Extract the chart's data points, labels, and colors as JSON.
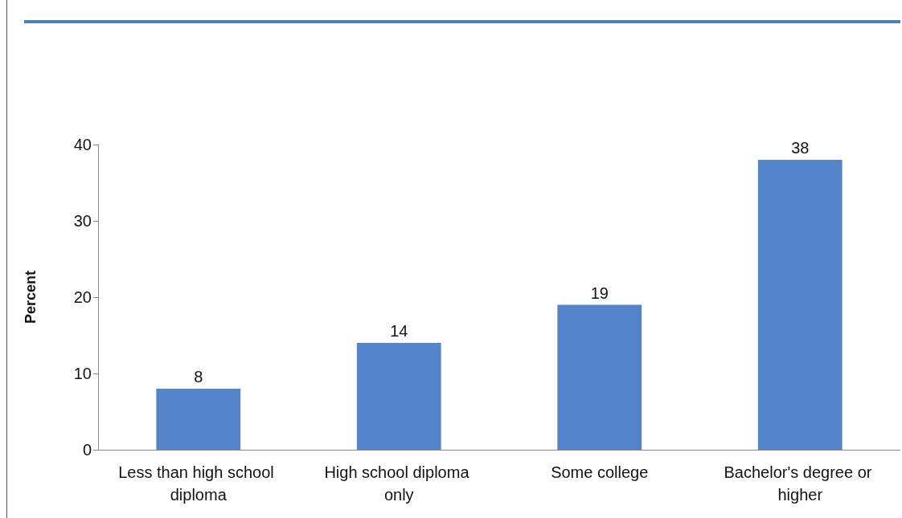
{
  "chart_data": {
    "type": "bar",
    "ylabel": "Percent",
    "categories": [
      "Less than high school diploma",
      "High school diploma only",
      "Some college",
      "Bachelor's degree or higher"
    ],
    "values": [
      8,
      14,
      19,
      38
    ],
    "color": "#5585c8",
    "ylim": [
      0,
      40
    ],
    "yticks": [
      0,
      10,
      20,
      30,
      40
    ],
    "grid": false,
    "data_labels": true
  }
}
